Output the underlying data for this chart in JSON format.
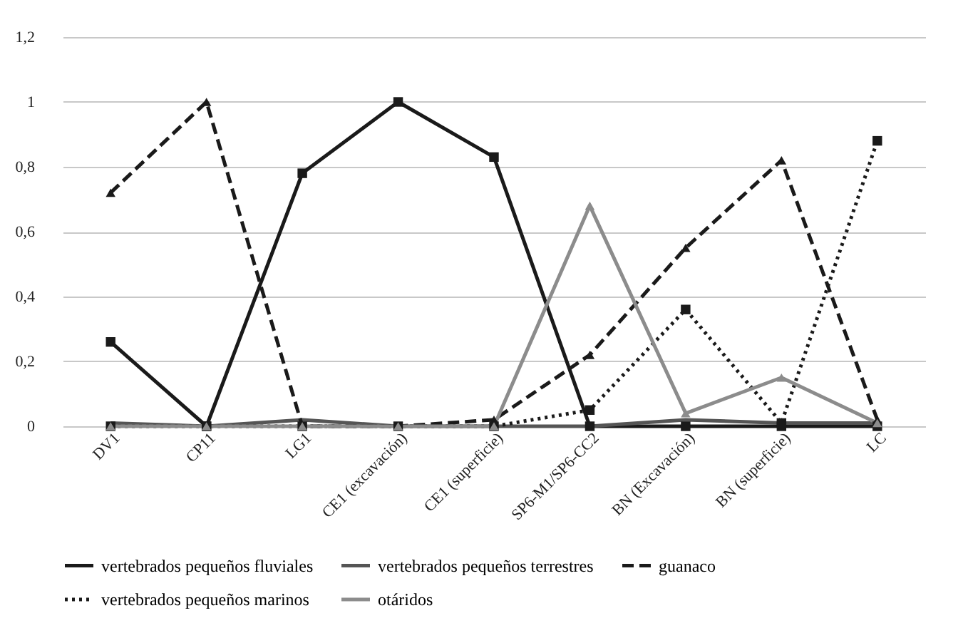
{
  "chart_data": {
    "type": "line",
    "categories": [
      "DV1",
      "CP11",
      "LG1",
      "CE1 (excavación)",
      "CE1 (superficie)",
      "SP6-M1/SP6-CC2",
      "BN (Excavación)",
      "BN (superficie)",
      "LC"
    ],
    "ylim": [
      0,
      1.2
    ],
    "yticks": [
      {
        "value": 0,
        "label": "0"
      },
      {
        "value": 0.2,
        "label": "0,2"
      },
      {
        "value": 0.4,
        "label": "0,4"
      },
      {
        "value": 0.6,
        "label": "0,6"
      },
      {
        "value": 0.8,
        "label": "0,8"
      },
      {
        "value": 1,
        "label": "1"
      },
      {
        "value": 1.2,
        "label": "1,2"
      }
    ],
    "grid": "y",
    "legend": "bottom",
    "series": [
      {
        "name": "vertebrados pequeños fluviales",
        "color": "#1a1a1a",
        "marker": "square",
        "line_style": "solid",
        "values": [
          0.26,
          0,
          0.78,
          1,
          0.83,
          0,
          0,
          0,
          0
        ]
      },
      {
        "name": "vertebrados pequeños terrestres",
        "color": "#555555",
        "marker": "none",
        "line_style": "solid",
        "values": [
          0.01,
          0,
          0.02,
          0,
          0,
          0,
          0.02,
          0.01,
          0.01
        ]
      },
      {
        "name": "guanaco",
        "color": "#1a1a1a",
        "marker": "triangle",
        "line_style": "dashed",
        "values": [
          0.72,
          1,
          0,
          0,
          0.02,
          0.22,
          0.55,
          0.82,
          0.02
        ]
      },
      {
        "name": "vertebrados pequeños marinos",
        "color": "#1a1a1a",
        "marker": "square",
        "line_style": "dotted",
        "values": [
          0,
          0,
          0,
          0,
          0,
          0.05,
          0.36,
          0.01,
          0.88
        ]
      },
      {
        "name": "otáridos",
        "color": "#8c8c8c",
        "marker": "triangle",
        "line_style": "solid",
        "values": [
          0,
          0,
          0,
          0,
          0,
          0.68,
          0.04,
          0.15,
          0.01
        ]
      }
    ]
  }
}
